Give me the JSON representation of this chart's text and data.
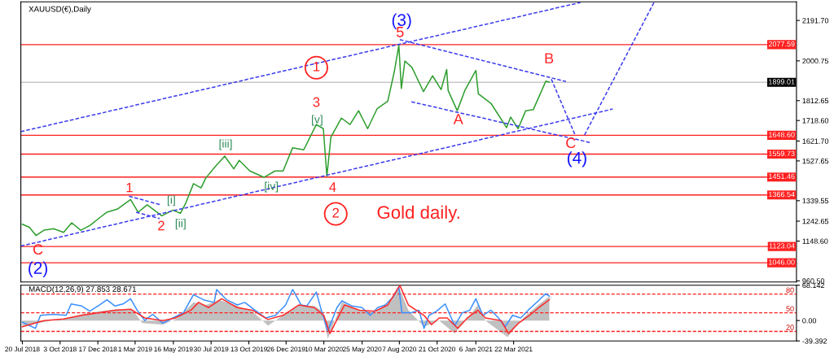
{
  "chart_data": [
    {
      "type": "line",
      "title": "XAUUSD(€),Daily",
      "xlim": [
        "2018-07-17",
        "2022-10-05"
      ],
      "ylim": [
        955,
        2280
      ],
      "yticks": [
        {
          "value": 2191.7,
          "label": "2191.70"
        },
        {
          "value": 2000.75,
          "label": "2000.75"
        },
        {
          "value": 1812.65,
          "label": "1812.65"
        },
        {
          "value": 1718.6,
          "label": "1718.60"
        },
        {
          "value": 1621.7,
          "label": "1621.70"
        },
        {
          "value": 1527.65,
          "label": "1527.65"
        },
        {
          "value": 1339.55,
          "label": "1339.55"
        },
        {
          "value": 1242.65,
          "label": "1242.65"
        },
        {
          "value": 1148.6,
          "label": "1148.60"
        },
        {
          "value": 960.5,
          "label": "960.50"
        }
      ],
      "tick_labels": "y",
      "series": [
        {
          "color": "#2e9e2e",
          "line_style": "solid",
          "x": [
            "2018-07-20",
            "2018-08-03",
            "2018-08-16",
            "2018-09-01",
            "2018-09-20",
            "2018-10-10",
            "2018-10-26",
            "2018-11-13",
            "2018-12-01",
            "2018-12-20",
            "2019-01-04",
            "2019-01-25",
            "2019-02-20",
            "2019-03-07",
            "2019-03-25",
            "2019-04-23",
            "2019-05-15",
            "2019-05-30",
            "2019-06-10",
            "2019-06-25",
            "2019-07-10",
            "2019-07-19",
            "2019-08-07",
            "2019-08-26",
            "2019-09-13",
            "2019-09-24",
            "2019-10-15",
            "2019-11-12",
            "2019-12-04",
            "2019-12-20",
            "2020-01-08",
            "2020-01-30",
            "2020-02-24",
            "2020-03-09",
            "2020-03-16",
            "2020-03-24",
            "2020-04-14",
            "2020-05-01",
            "2020-05-18",
            "2020-06-05",
            "2020-06-24",
            "2020-07-15",
            "2020-07-28",
            "2020-08-06",
            "2020-08-11",
            "2020-08-18",
            "2020-09-01",
            "2020-09-24",
            "2020-10-12",
            "2020-10-29",
            "2020-11-09",
            "2020-11-12",
            "2020-11-30",
            "2020-12-15",
            "2021-01-06",
            "2021-01-11",
            "2021-02-05",
            "2021-03-08",
            "2021-03-16",
            "2021-03-31",
            "2021-04-15",
            "2021-04-30",
            "2021-05-14",
            "2021-05-25",
            "2021-06-01"
          ],
          "values": [
            1228,
            1214,
            1175,
            1200,
            1207,
            1190,
            1235,
            1200,
            1222,
            1258,
            1285,
            1300,
            1345,
            1285,
            1320,
            1268,
            1295,
            1280,
            1330,
            1420,
            1400,
            1445,
            1500,
            1550,
            1490,
            1530,
            1480,
            1450,
            1480,
            1480,
            1590,
            1580,
            1700,
            1680,
            1455,
            1640,
            1730,
            1700,
            1765,
            1680,
            1775,
            1810,
            1950,
            2075,
            1870,
            2000,
            1970,
            1855,
            1930,
            1865,
            1960,
            1860,
            1765,
            1860,
            1955,
            1845,
            1800,
            1685,
            1735,
            1680,
            1765,
            1770,
            1845,
            1905,
            1900
          ]
        },
        {
          "color": "#3c3cf0",
          "line_style": "dashed",
          "x": [
            "2018-07-17",
            "2021-08-02"
          ],
          "values": [
            1666,
            2277
          ]
        },
        {
          "color": "#3c3cf0",
          "line_style": "dashed",
          "x": [
            "2018-07-17",
            "2021-10-05"
          ],
          "values": [
            1125,
            1773
          ]
        },
        {
          "color": "#3c3cf0",
          "line_style": "dashed",
          "x": [
            "2019-02-17",
            "2019-04-21"
          ],
          "values": [
            1361,
            1320
          ]
        },
        {
          "color": "#3c3cf0",
          "line_style": "dashed",
          "x": [
            "2019-03-03",
            "2019-04-19"
          ],
          "values": [
            1285,
            1255
          ]
        },
        {
          "color": "#3c3cf0",
          "line_style": "dashed",
          "x": [
            "2020-08-08",
            "2021-07-04"
          ],
          "values": [
            2101,
            1903
          ]
        },
        {
          "color": "#3c3cf0",
          "line_style": "dashed",
          "x": [
            "2020-08-31",
            "2021-08-24"
          ],
          "values": [
            1807,
            1613
          ]
        },
        {
          "color": "#3c3cf0",
          "line_style": "dashed",
          "x": [
            "2021-06-05",
            "2021-07-22"
          ],
          "values": [
            1914,
            1651
          ]
        },
        {
          "color": "#3c3cf0",
          "line_style": "dashed",
          "x": [
            "2021-08-10",
            "2021-12-26"
          ],
          "values": [
            1651,
            2277
          ]
        }
      ],
      "ref_lines": [
        {
          "axis": "y",
          "value": 2077.59,
          "label": "2077.59",
          "color": "#ff2020",
          "line_style": "solid"
        },
        {
          "axis": "y",
          "value": 1899.01,
          "label": "1899.01",
          "color": "#c8c8c8",
          "line_style": "solid"
        },
        {
          "axis": "y",
          "value": 1648.6,
          "label": "1648.60",
          "color": "#ff2020",
          "line_style": "solid"
        },
        {
          "axis": "y",
          "value": 1559.73,
          "label": "1559.73",
          "color": "#ff2020",
          "line_style": "solid"
        },
        {
          "axis": "y",
          "value": 1451.46,
          "label": "1451.46",
          "color": "#ff2020",
          "line_style": "solid"
        },
        {
          "axis": "y",
          "value": 1366.54,
          "label": "1366.54",
          "color": "#ff2020",
          "line_style": "solid"
        },
        {
          "axis": "y",
          "value": 1123.04,
          "label": "1123.04",
          "color": "#ff2020",
          "line_style": "solid"
        },
        {
          "axis": "y",
          "value": 1046.0,
          "label": "1046.00",
          "color": "#ff2020",
          "line_style": "solid"
        }
      ],
      "annotations": [
        "(3)",
        "5",
        "1",
        "3",
        "[v]",
        "[iii]",
        "1",
        "2",
        "[i]",
        "[ii]",
        "[iv]",
        "4",
        "2",
        "Gold daily.",
        "C",
        "(2)",
        "A",
        "B",
        "C",
        "(4)"
      ]
    },
    {
      "type": "line",
      "title": "MACD(12,26,9) 27.853 28.671",
      "xlim": [
        "2018-07-17",
        "2022-10-05"
      ],
      "ylim": [
        -39.392,
        68.142
      ],
      "xticks": [
        {
          "value": "2018-07-20",
          "label": "20 Jul 2018"
        },
        {
          "value": "2018-10-03",
          "label": "3 Oct 2018"
        },
        {
          "value": "2018-12-17",
          "label": "17 Dec 2018"
        },
        {
          "value": "2019-03-01",
          "label": "1 Mar 2019"
        },
        {
          "value": "2019-05-16",
          "label": "16 May 2019"
        },
        {
          "value": "2019-07-30",
          "label": "30 Jul 2019"
        },
        {
          "value": "2019-10-13",
          "label": "13 Oct 2019"
        },
        {
          "value": "2019-12-26",
          "label": "26 Dec 2019"
        },
        {
          "value": "2020-03-10",
          "label": "10 Mar 2020"
        },
        {
          "value": "2020-05-25",
          "label": "25 May 2020"
        },
        {
          "value": "2020-08-07",
          "label": "7 Aug 2020"
        },
        {
          "value": "2020-10-21",
          "label": "21 Oct 2020"
        },
        {
          "value": "2021-01-06",
          "label": "6 Jan 2021"
        },
        {
          "value": "2021-03-22",
          "label": "22 Mar 2021"
        }
      ],
      "yticks": [
        {
          "value": 68.142,
          "label": "68.142"
        },
        {
          "value": 0,
          "label": "0.00"
        },
        {
          "value": -39.392,
          "label": "-39.392"
        }
      ],
      "annotations": [
        {
          "text": "80",
          "y": 51
        },
        {
          "text": "50",
          "y": 15
        },
        {
          "text": "20",
          "y": -21
        }
      ],
      "series": [
        {
          "type": "area",
          "color": "#c0c0c0",
          "x": [
            "2018-07-20",
            "2018-09-01",
            "2018-10-15",
            "2018-11-15",
            "2018-12-20",
            "2019-01-25",
            "2019-02-25",
            "2019-03-15",
            "2019-04-25",
            "2019-05-25",
            "2019-06-25",
            "2019-07-20",
            "2019-08-15",
            "2019-09-20",
            "2019-10-20",
            "2019-11-20",
            "2019-12-20",
            "2020-01-20",
            "2020-02-20",
            "2020-03-05",
            "2020-03-18",
            "2020-04-15",
            "2020-05-20",
            "2020-06-20",
            "2020-07-20",
            "2020-08-06",
            "2020-08-25",
            "2020-09-25",
            "2020-10-25",
            "2020-11-25",
            "2020-12-25",
            "2021-01-10",
            "2021-01-25",
            "2021-03-10",
            "2021-04-10",
            "2021-05-10",
            "2021-06-01"
          ],
          "values": [
            -10,
            -3,
            5,
            12,
            18,
            22,
            20,
            -5,
            -8,
            5,
            35,
            30,
            40,
            28,
            18,
            -10,
            10,
            30,
            28,
            20,
            -35,
            35,
            20,
            15,
            35,
            66,
            20,
            -12,
            0,
            -25,
            10,
            30,
            0,
            -32,
            5,
            30,
            47
          ]
        },
        {
          "color": "#3b8fff",
          "line_style": "solid",
          "x": [
            "2018-07-20",
            "2018-08-15",
            "2018-08-25",
            "2018-09-20",
            "2018-10-15",
            "2018-10-25",
            "2018-11-15",
            "2018-12-01",
            "2018-12-20",
            "2019-01-04",
            "2019-01-20",
            "2019-02-05",
            "2019-02-20",
            "2019-03-05",
            "2019-03-20",
            "2019-04-05",
            "2019-04-25",
            "2019-05-15",
            "2019-06-05",
            "2019-06-25",
            "2019-07-15",
            "2019-08-05",
            "2019-08-10",
            "2019-08-30",
            "2019-09-20",
            "2019-10-05",
            "2019-10-25",
            "2019-11-15",
            "2019-12-05",
            "2019-12-25",
            "2020-01-08",
            "2020-01-25",
            "2020-02-05",
            "2020-02-24",
            "2020-03-05",
            "2020-03-18",
            "2020-04-05",
            "2020-04-15",
            "2020-05-05",
            "2020-05-25",
            "2020-06-10",
            "2020-06-25",
            "2020-07-10",
            "2020-07-25",
            "2020-08-06",
            "2020-08-12",
            "2020-08-30",
            "2020-09-15",
            "2020-09-25",
            "2020-10-05",
            "2020-10-20",
            "2020-11-06",
            "2020-11-25",
            "2020-12-10",
            "2020-12-25",
            "2021-01-06",
            "2021-01-20",
            "2021-02-05",
            "2021-02-20",
            "2021-03-05",
            "2021-03-20",
            "2021-04-05",
            "2021-04-20",
            "2021-05-10",
            "2021-05-25",
            "2021-06-01"
          ],
          "values": [
            -3,
            -15,
            10,
            12,
            10,
            32,
            28,
            18,
            30,
            40,
            28,
            32,
            42,
            20,
            0,
            12,
            -5,
            5,
            15,
            50,
            40,
            35,
            60,
            40,
            30,
            35,
            20,
            5,
            10,
            30,
            60,
            30,
            28,
            55,
            20,
            -20,
            25,
            38,
            28,
            25,
            10,
            25,
            30,
            45,
            65,
            15,
            15,
            20,
            -15,
            10,
            18,
            32,
            -10,
            15,
            20,
            42,
            10,
            20,
            5,
            -12,
            10,
            5,
            20,
            38,
            52,
            47
          ]
        },
        {
          "color": "#ff2a2a",
          "line_style": "solid",
          "x": [
            "2018-07-20",
            "2018-09-01",
            "2018-10-10",
            "2018-11-15",
            "2018-12-20",
            "2019-01-20",
            "2019-02-20",
            "2019-03-20",
            "2019-04-25",
            "2019-05-20",
            "2019-06-20",
            "2019-07-05",
            "2019-07-25",
            "2019-08-20",
            "2019-09-20",
            "2019-10-20",
            "2019-11-20",
            "2019-12-20",
            "2020-01-20",
            "2020-02-20",
            "2020-03-10",
            "2020-03-22",
            "2020-04-20",
            "2020-05-20",
            "2020-06-20",
            "2020-07-15",
            "2020-08-08",
            "2020-08-25",
            "2020-09-25",
            "2020-10-10",
            "2020-10-25",
            "2020-11-10",
            "2020-12-01",
            "2020-12-20",
            "2021-01-10",
            "2021-01-25",
            "2021-02-25",
            "2021-03-12",
            "2021-04-01",
            "2021-04-25",
            "2021-05-15",
            "2021-06-01"
          ],
          "values": [
            -12,
            0,
            3,
            10,
            15,
            20,
            22,
            5,
            0,
            5,
            20,
            35,
            25,
            42,
            25,
            20,
            2,
            10,
            30,
            25,
            10,
            -25,
            30,
            20,
            18,
            30,
            68,
            30,
            10,
            -8,
            5,
            5,
            -15,
            5,
            20,
            5,
            0,
            -25,
            -5,
            12,
            28,
            40
          ]
        }
      ],
      "ref_lines": [
        {
          "axis": "y",
          "value": 51,
          "color": "#ff2020",
          "line_style": "dashed"
        },
        {
          "axis": "y",
          "value": 15,
          "color": "#ff2020",
          "line_style": "dashed"
        },
        {
          "axis": "y",
          "value": -21,
          "color": "#ff2020",
          "line_style": "dashed"
        }
      ]
    }
  ]
}
